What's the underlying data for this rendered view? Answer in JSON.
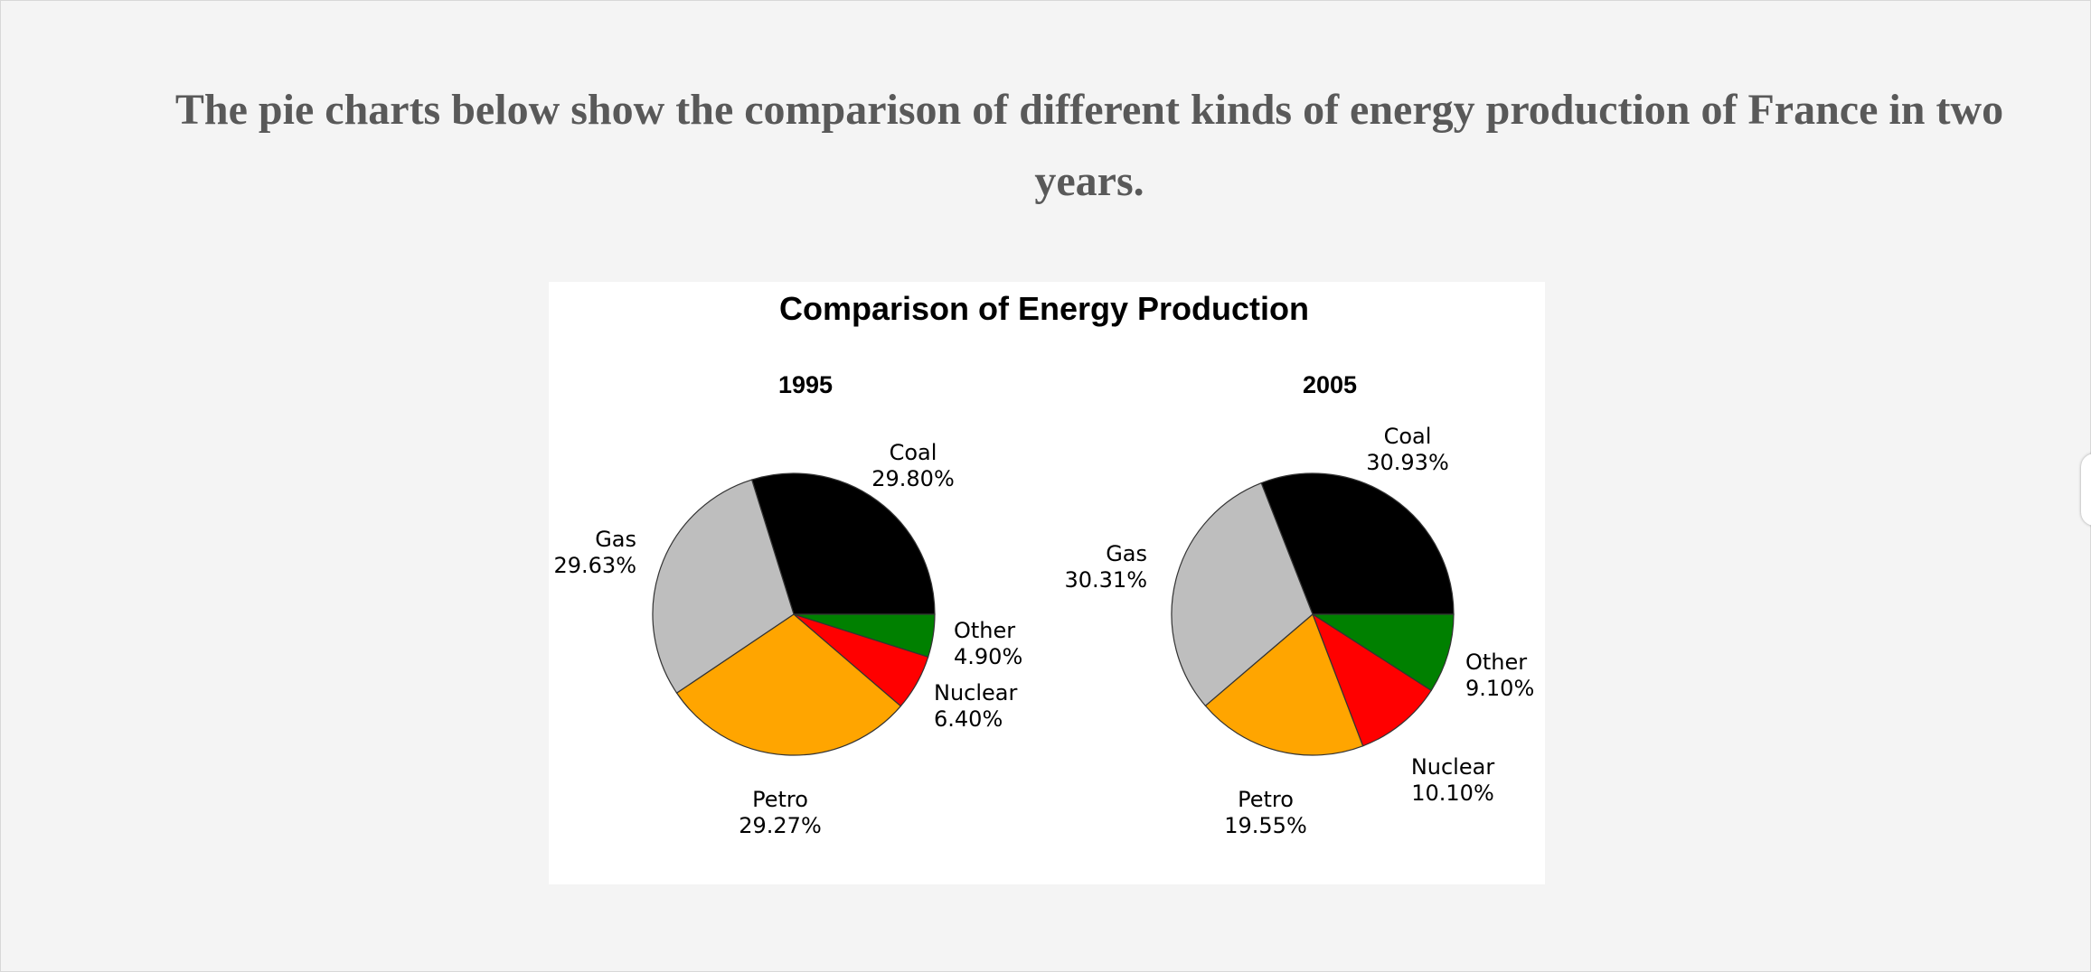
{
  "heading": "The pie charts below show the comparison of different kinds of energy production of France in two years.",
  "chart_data": {
    "type": "pie",
    "title": "Comparison of Energy Production",
    "charts": [
      {
        "year": "1995",
        "slices": [
          {
            "name": "Coal",
            "value": 29.8,
            "label": "29.80%",
            "color": "#000000"
          },
          {
            "name": "Other",
            "value": 4.9,
            "label": "4.90%",
            "color": "#008000"
          },
          {
            "name": "Nuclear",
            "value": 6.4,
            "label": "6.40%",
            "color": "#ff0000"
          },
          {
            "name": "Petro",
            "value": 29.27,
            "label": "29.27%",
            "color": "#ffa500"
          },
          {
            "name": "Gas",
            "value": 29.63,
            "label": "29.63%",
            "color": "#bebebe"
          }
        ]
      },
      {
        "year": "2005",
        "slices": [
          {
            "name": "Coal",
            "value": 30.93,
            "label": "30.93%",
            "color": "#000000"
          },
          {
            "name": "Other",
            "value": 9.1,
            "label": "9.10%",
            "color": "#008000"
          },
          {
            "name": "Nuclear",
            "value": 10.1,
            "label": "10.10%",
            "color": "#ff0000"
          },
          {
            "name": "Petro",
            "value": 19.55,
            "label": "19.55%",
            "color": "#ffa500"
          },
          {
            "name": "Gas",
            "value": 30.31,
            "label": "30.31%",
            "color": "#bebebe"
          }
        ]
      }
    ]
  }
}
